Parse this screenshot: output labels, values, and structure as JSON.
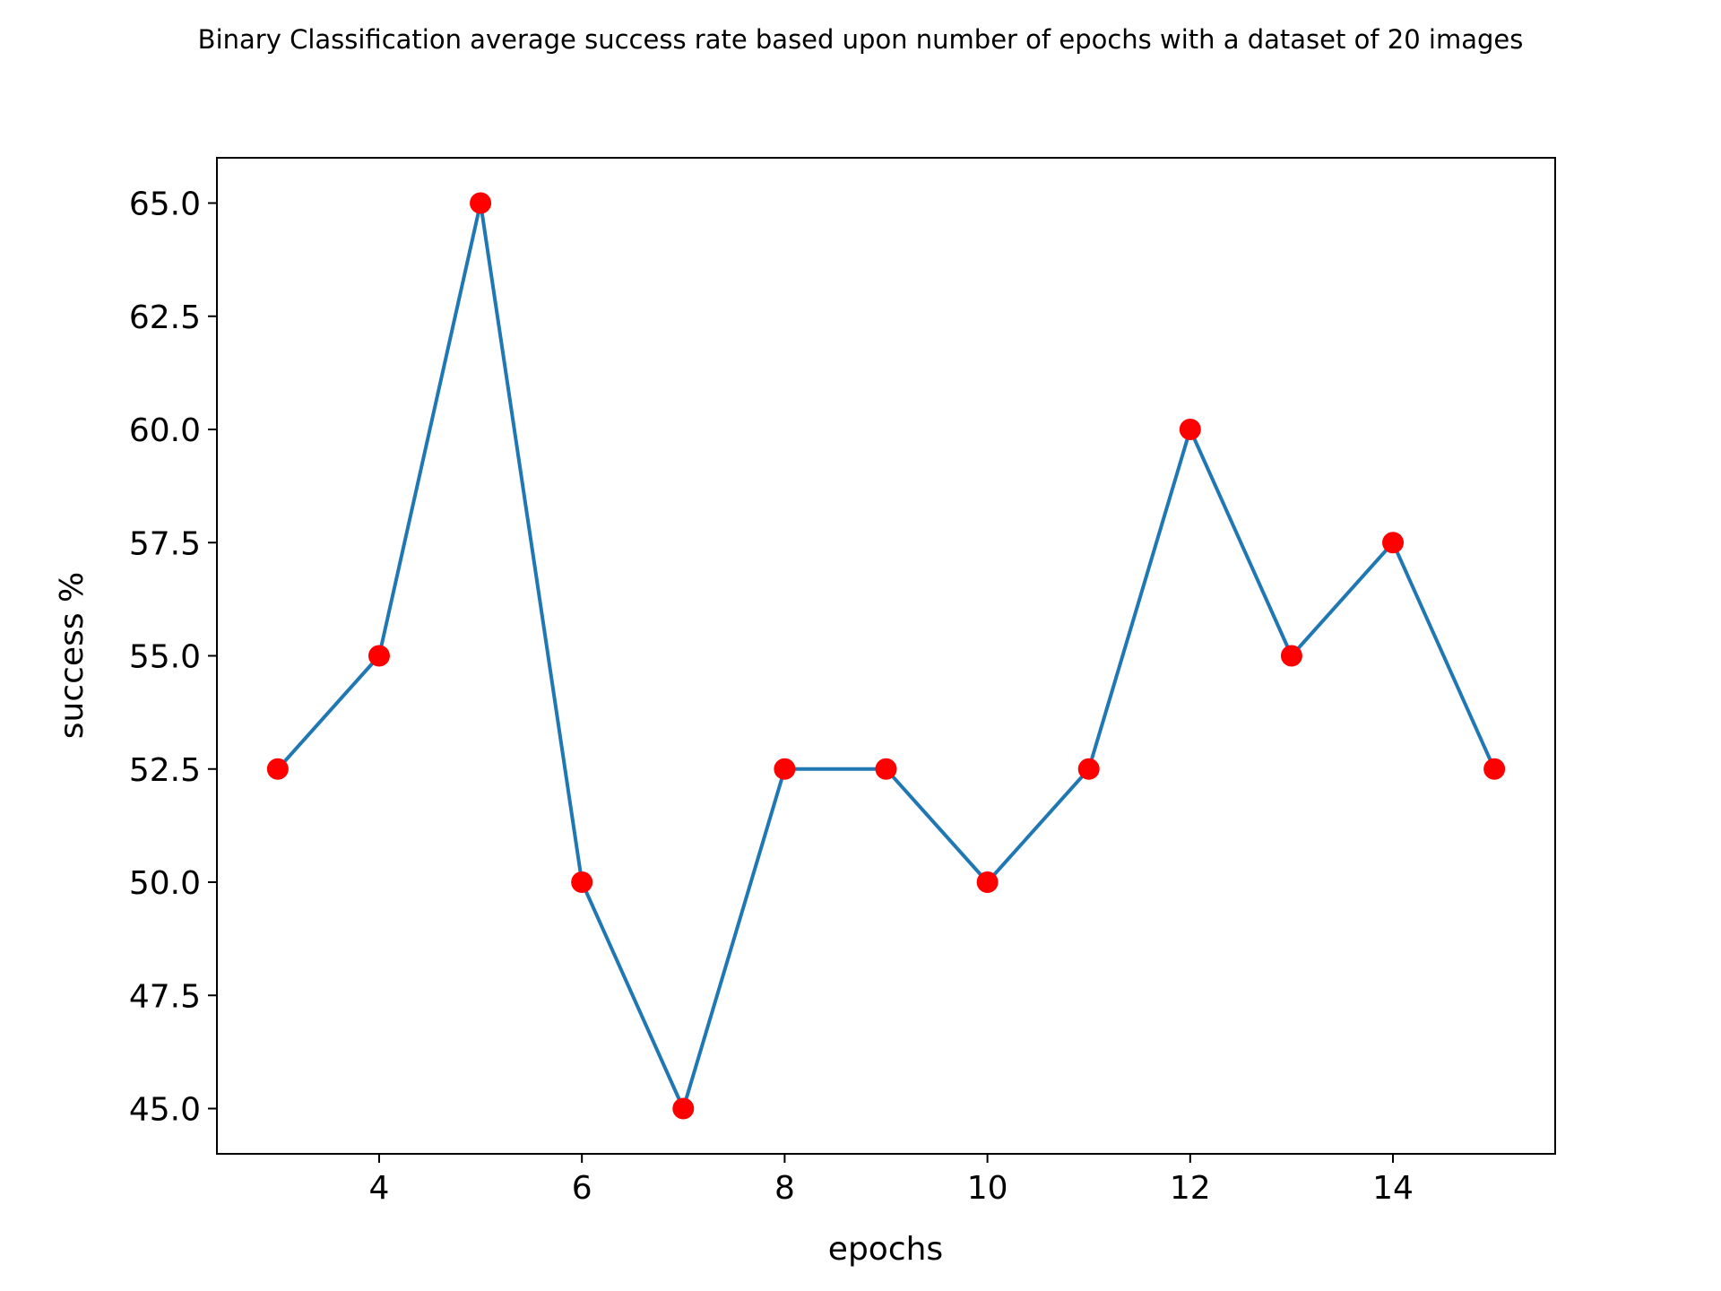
{
  "chart_data": {
    "type": "line",
    "title": "Binary Classification average success rate based upon number of epochs with a dataset of 20 images",
    "xlabel": "epochs",
    "ylabel": "success %",
    "x": [
      3,
      4,
      5,
      6,
      7,
      8,
      9,
      10,
      11,
      12,
      13,
      14,
      15
    ],
    "series": [
      {
        "values": [
          52.5,
          55.0,
          65.0,
          50.0,
          45.0,
          52.5,
          52.5,
          50.0,
          52.5,
          60.0,
          55.0,
          57.5,
          52.5
        ]
      }
    ],
    "xlim": [
      2.4,
      15.6
    ],
    "ylim": [
      44.0,
      66.0
    ],
    "xticks": [
      4,
      6,
      8,
      10,
      12,
      14
    ],
    "xtick_labels": [
      "4",
      "6",
      "8",
      "10",
      "12",
      "14"
    ],
    "yticks": [
      45.0,
      47.5,
      50.0,
      52.5,
      55.0,
      57.5,
      60.0,
      62.5,
      65.0
    ],
    "ytick_labels": [
      "45.0",
      "47.5",
      "50.0",
      "52.5",
      "55.0",
      "57.5",
      "60.0",
      "62.5",
      "65.0"
    ],
    "grid": false,
    "line_color": "#1f77b4",
    "marker_color": "#ff0000"
  }
}
